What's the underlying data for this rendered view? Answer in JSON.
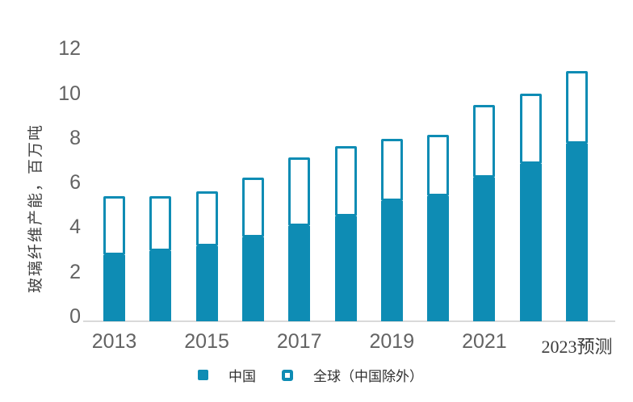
{
  "colors": {
    "accent": "#0e8cb4",
    "axis_line": "#d9d9d9",
    "axis_text": "#636363",
    "legend_text": "#303030"
  },
  "chart_data": {
    "type": "bar",
    "stacked": true,
    "title": "",
    "ylabel": "玻璃纤维产能，百万吨",
    "xlabel": "",
    "ylim": [
      0,
      12
    ],
    "yticks": [
      0,
      2,
      4,
      6,
      8,
      10,
      12
    ],
    "grid": false,
    "legend_position": "bottom",
    "categories": [
      "2013",
      "2014",
      "2015",
      "2016",
      "2017",
      "2018",
      "2019",
      "2020",
      "2021",
      "2022",
      "2023预测"
    ],
    "x_tick_labels": [
      "2013",
      "2015",
      "2017",
      "2019",
      "2021",
      "2023预测"
    ],
    "series": [
      {
        "name": "中国",
        "style": "solid",
        "color": "#0e8cb4",
        "values": [
          2.9,
          3.1,
          3.3,
          3.7,
          4.2,
          4.6,
          5.3,
          5.5,
          6.3,
          6.9,
          7.8
        ]
      },
      {
        "name": "全球（中国除外）",
        "style": "outline",
        "color": "#0e8cb4",
        "values": [
          2.6,
          2.4,
          2.4,
          2.6,
          3.0,
          3.1,
          2.7,
          2.7,
          3.2,
          3.1,
          3.2
        ]
      }
    ],
    "stack_totals": [
      5.5,
      5.5,
      5.7,
      6.3,
      7.2,
      7.7,
      8.0,
      8.2,
      9.5,
      10.0,
      11.0
    ]
  }
}
